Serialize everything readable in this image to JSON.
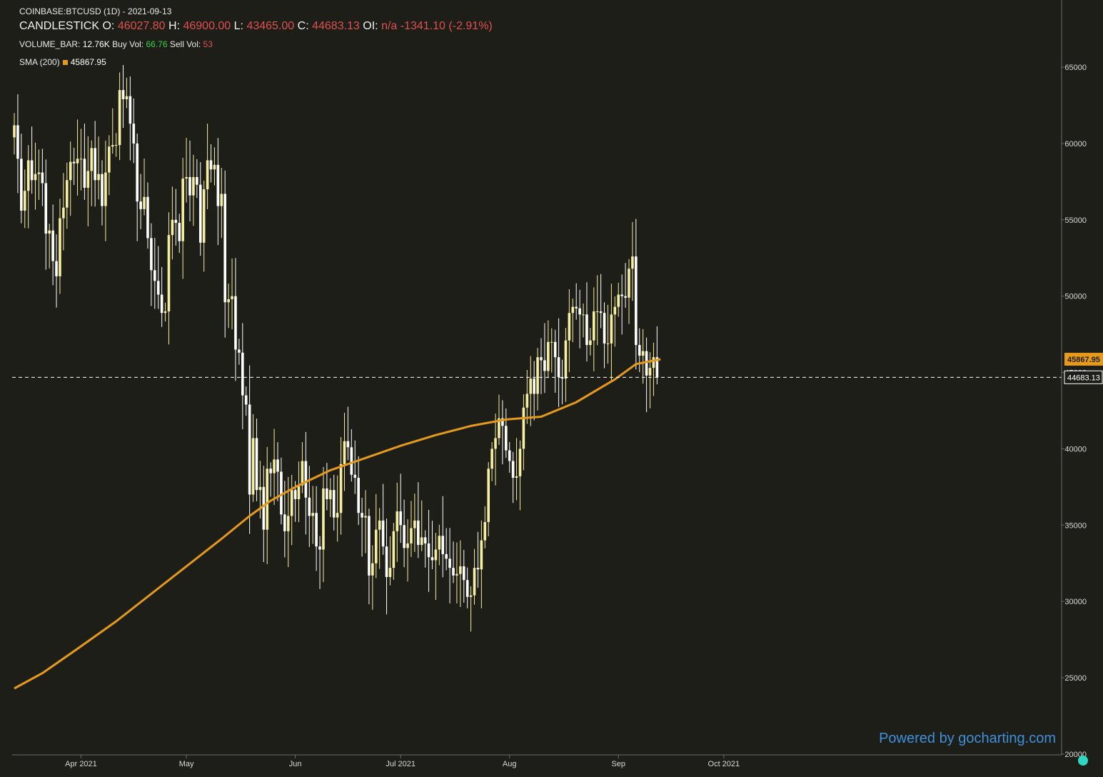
{
  "header": {
    "title": "COINBASE:BTCUSD (1D) - 2021-09-13",
    "ohlc": {
      "name": "CANDLESTICK",
      "o_label": "O:",
      "o": "46027.80",
      "h_label": "H:",
      "h": "46900.00",
      "l_label": "L:",
      "l": "43465.00",
      "c_label": "C:",
      "c": "44683.13",
      "oi_label": "OI:",
      "oi": "n/a",
      "change": "-1341.10",
      "change_pct": "(-2.91%)"
    },
    "volume": {
      "name": "VOLUME_BAR:",
      "value": "12.76K",
      "buy_label": "Buy Vol:",
      "buy": "66.76",
      "sell_label": "Sell Vol:",
      "sell": "53"
    },
    "sma": {
      "name": "SMA (200)",
      "value": "45867.95"
    }
  },
  "price_labels": {
    "sma": "45867.95",
    "last": "44683.13"
  },
  "watermark": "Powered by gocharting.com",
  "colors": {
    "background": "#1e1e19",
    "up_candle": "#f6eea0",
    "down_candle": "#ffffff",
    "sma_line": "#e59a1c",
    "axis_text": "#d8d8d8",
    "negative": "#e05050",
    "positive": "#3bd14a",
    "watermark": "#3e8fd8",
    "status_dot": "#2fd6c2"
  },
  "chart_data": {
    "type": "candlestick",
    "x_axis": {
      "tick_labels": [
        "Apr 2021",
        "May",
        "Jun",
        "Jul 2021",
        "Aug",
        "Sep",
        "Oct 2021"
      ],
      "tick_dates": [
        "2021-04-01",
        "2021-05-01",
        "2021-06-01",
        "2021-07-01",
        "2021-08-01",
        "2021-09-01",
        "2021-10-01"
      ],
      "range": [
        "2021-03-13",
        "2021-10-20"
      ]
    },
    "y_axis": {
      "position": "right",
      "tick_labels": [
        "20000",
        "25000",
        "30000",
        "35000",
        "40000",
        "45000",
        "50000",
        "55000",
        "60000",
        "65000"
      ],
      "range": [
        19950,
        69400
      ]
    },
    "candles": {
      "start_date": "2021-03-13",
      "close": [
        61195,
        59000,
        55600,
        56900,
        58900,
        57600,
        58000,
        58100,
        57400,
        54100,
        54300,
        52300,
        51300,
        55100,
        55800,
        57600,
        58800,
        58700,
        59000,
        59000,
        57100,
        58200,
        59700,
        57600,
        58000,
        55900,
        58100,
        59800,
        59900,
        59900,
        63500,
        62900,
        63100,
        61300,
        60000,
        56200,
        55700,
        56500,
        53800,
        51700,
        51000,
        50100,
        48900,
        49000,
        54000,
        55000,
        54800,
        53600,
        57700,
        57800,
        56600,
        57800,
        57300,
        53500,
        57000,
        58900,
        58300,
        58600,
        55900,
        56700,
        49600,
        49800,
        50000,
        46500,
        46300,
        43500,
        42900,
        37000,
        40700,
        37300,
        37500,
        34700,
        38700,
        38400,
        39300,
        38500,
        35700,
        34600,
        35600,
        37300,
        36700,
        37600,
        39200,
        36800,
        35600,
        35800,
        33600,
        33400,
        37400,
        36700,
        37300,
        35500,
        35800,
        39000,
        40500,
        40100,
        38300,
        38100,
        35800,
        35500,
        35600,
        31700,
        32500,
        34700,
        35300,
        33600,
        31600,
        32200,
        34600,
        35900,
        35000,
        33500,
        33800,
        34800,
        35300,
        33700,
        34200,
        33800,
        32900,
        32700,
        33400,
        34300,
        33100,
        32800,
        32200,
        31700,
        31800,
        32300,
        31400,
        30300,
        30400,
        32200,
        32100,
        34000,
        35200,
        38700,
        40000,
        40700,
        42000,
        41500,
        39900,
        39200,
        38100,
        38200,
        40000,
        42700,
        43600,
        44600,
        43600,
        46000,
        45800,
        45100,
        47000,
        47000,
        46000,
        44700,
        44600,
        47100,
        48900,
        49300,
        49200,
        48800,
        48800,
        46800,
        47100,
        49000,
        49000,
        48900,
        46900,
        46900,
        48800,
        49300,
        50100,
        50000,
        49900,
        51800,
        52600,
        46800,
        46100,
        46400,
        44800,
        45300,
        46000,
        44683
      ]
    },
    "series": [
      {
        "name": "SMA (200)",
        "points": [
          [
            "2021-03-13",
            24300
          ],
          [
            "2021-03-21",
            25300
          ],
          [
            "2021-03-31",
            26900
          ],
          [
            "2021-04-11",
            28700
          ],
          [
            "2021-04-21",
            30500
          ],
          [
            "2021-05-01",
            32300
          ],
          [
            "2021-05-11",
            34100
          ],
          [
            "2021-05-19",
            35600
          ],
          [
            "2021-05-25",
            36600
          ],
          [
            "2021-06-01",
            37500
          ],
          [
            "2021-06-11",
            38600
          ],
          [
            "2021-06-21",
            39400
          ],
          [
            "2021-07-01",
            40200
          ],
          [
            "2021-07-11",
            40900
          ],
          [
            "2021-07-21",
            41500
          ],
          [
            "2021-07-31",
            41920
          ],
          [
            "2021-08-10",
            42100
          ],
          [
            "2021-08-20",
            43050
          ],
          [
            "2021-08-31",
            44550
          ],
          [
            "2021-09-06",
            45550
          ],
          [
            "2021-09-13",
            45868
          ]
        ]
      }
    ],
    "last_price": 44683.13,
    "grid": false
  }
}
